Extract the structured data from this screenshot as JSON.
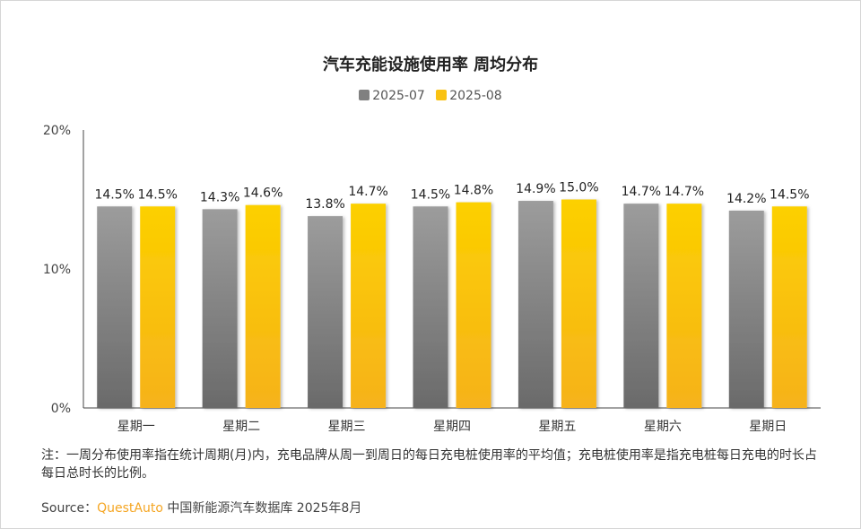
{
  "chart_data": {
    "type": "bar",
    "title": "汽车充能设施使用率 周均分布",
    "categories": [
      "星期一",
      "星期二",
      "星期三",
      "星期四",
      "星期五",
      "星期六",
      "星期日"
    ],
    "series": [
      {
        "name": "2025-07",
        "color": "#808080",
        "values": [
          14.5,
          14.3,
          13.8,
          14.5,
          14.9,
          14.7,
          14.2
        ],
        "labels": [
          "14.5%",
          "14.3%",
          "13.8%",
          "14.5%",
          "14.9%",
          "14.7%",
          "14.2%"
        ]
      },
      {
        "name": "2025-08",
        "color": "#f9c213",
        "values": [
          14.5,
          14.6,
          14.7,
          14.8,
          15.0,
          14.7,
          14.5
        ],
        "labels": [
          "14.5%",
          "14.6%",
          "14.7%",
          "14.8%",
          "15.0%",
          "14.7%",
          "14.5%"
        ]
      }
    ],
    "ylim": [
      0,
      20
    ],
    "yticks": [
      {
        "value": 20,
        "label": "20%"
      },
      {
        "value": 10,
        "label": "10%"
      },
      {
        "value": 0,
        "label": "0%"
      }
    ],
    "grid": false,
    "legend_position": "top-center"
  },
  "note": "注：一周分布使用率指在统计周期(月)内，充电品牌从周一到周日的每日充电桩使用率的平均值；充电桩使用率是指充电桩每日充电的时长占每日总时长的比例。",
  "source": {
    "prefix": "Source：",
    "brand": "QuestAuto",
    "text": "中国新能源汽车数据库 2025年8月"
  }
}
